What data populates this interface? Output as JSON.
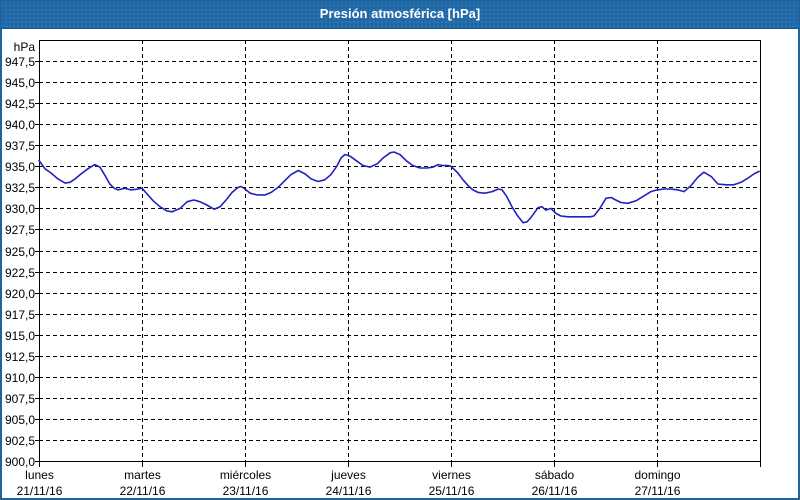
{
  "window": {
    "title": "Presión atmosférica [hPa]"
  },
  "colors": {
    "titlebar_bg": "#2069A8",
    "titlebar_text": "#FFFFFF",
    "outer_border": "#1E649E",
    "plot_border": "#000000",
    "grid": "#000000",
    "line": "#2222BB",
    "label_text": "#000000",
    "background": "#FFFFFF"
  },
  "chart_data": {
    "type": "line",
    "title": "Presión atmosférica [hPa]",
    "unit_label": "hPa",
    "ylim": [
      900,
      950
    ],
    "ytick_step": 2.5,
    "ytick_labels_top_to_bottom": [
      "947,5",
      "945,0",
      "942,5",
      "940,0",
      "937,5",
      "935,0",
      "932,5",
      "930,0",
      "927,5",
      "925,0",
      "922,5",
      "920,0",
      "917,5",
      "915,0",
      "912,5",
      "910,0",
      "907,5",
      "905,0",
      "902,5",
      "900,0"
    ],
    "grid": "dashed",
    "legend": "none",
    "x_total_hours": 168,
    "x_days": [
      {
        "name": "lunes",
        "date": "21/11/16"
      },
      {
        "name": "martes",
        "date": "22/11/16"
      },
      {
        "name": "miércoles",
        "date": "23/11/16"
      },
      {
        "name": "jueves",
        "date": "24/11/16"
      },
      {
        "name": "viernes",
        "date": "25/11/16"
      },
      {
        "name": "sábado",
        "date": "26/11/16"
      },
      {
        "name": "domingo",
        "date": "27/11/16"
      }
    ],
    "series": [
      {
        "name": "Presión atmosférica",
        "color": "#2222BB",
        "points": [
          [
            0.0,
            935.7
          ],
          [
            1.4,
            934.7
          ],
          [
            2.8,
            934.2
          ],
          [
            4.4,
            933.5
          ],
          [
            6.1,
            933.0
          ],
          [
            7.2,
            933.1
          ],
          [
            8.4,
            933.5
          ],
          [
            9.8,
            934.1
          ],
          [
            11.4,
            934.7
          ],
          [
            13.0,
            935.2
          ],
          [
            14.2,
            934.9
          ],
          [
            15.4,
            933.9
          ],
          [
            16.5,
            932.9
          ],
          [
            17.5,
            932.4
          ],
          [
            18.4,
            932.2
          ],
          [
            20.0,
            932.4
          ],
          [
            21.4,
            932.2
          ],
          [
            23.1,
            932.3
          ],
          [
            24.0,
            932.4
          ],
          [
            25.2,
            931.7
          ],
          [
            26.6,
            930.9
          ],
          [
            28.2,
            930.2
          ],
          [
            29.8,
            929.7
          ],
          [
            31.0,
            929.6
          ],
          [
            32.9,
            930.0
          ],
          [
            34.5,
            930.8
          ],
          [
            36.1,
            931.0
          ],
          [
            37.5,
            930.8
          ],
          [
            39.1,
            930.4
          ],
          [
            40.8,
            929.9
          ],
          [
            42.2,
            930.2
          ],
          [
            43.6,
            931.0
          ],
          [
            45.0,
            931.9
          ],
          [
            46.4,
            932.5
          ],
          [
            47.1,
            932.6
          ],
          [
            48.0,
            932.3
          ],
          [
            49.2,
            931.8
          ],
          [
            50.8,
            931.6
          ],
          [
            52.7,
            931.6
          ],
          [
            54.1,
            931.9
          ],
          [
            55.7,
            932.5
          ],
          [
            57.3,
            933.3
          ],
          [
            58.7,
            934.0
          ],
          [
            60.4,
            934.5
          ],
          [
            62.0,
            934.1
          ],
          [
            63.4,
            933.5
          ],
          [
            65.0,
            933.2
          ],
          [
            66.6,
            933.4
          ],
          [
            68.0,
            934.0
          ],
          [
            69.4,
            935.0
          ],
          [
            70.4,
            936.0
          ],
          [
            71.3,
            936.4
          ],
          [
            72.5,
            936.2
          ],
          [
            74.1,
            935.6
          ],
          [
            75.5,
            935.1
          ],
          [
            77.1,
            934.9
          ],
          [
            78.8,
            935.3
          ],
          [
            80.2,
            936.0
          ],
          [
            81.8,
            936.6
          ],
          [
            82.7,
            936.7
          ],
          [
            84.1,
            936.4
          ],
          [
            85.7,
            935.6
          ],
          [
            87.1,
            935.1
          ],
          [
            88.8,
            934.8
          ],
          [
            90.4,
            934.8
          ],
          [
            91.8,
            934.9
          ],
          [
            93.0,
            935.2
          ],
          [
            94.1,
            935.1
          ],
          [
            95.3,
            935.1
          ],
          [
            96.0,
            935.0
          ],
          [
            97.6,
            934.2
          ],
          [
            98.8,
            933.4
          ],
          [
            100.0,
            932.7
          ],
          [
            101.1,
            932.2
          ],
          [
            102.3,
            931.9
          ],
          [
            103.9,
            931.8
          ],
          [
            105.6,
            932.0
          ],
          [
            107.0,
            932.3
          ],
          [
            107.9,
            932.2
          ],
          [
            109.0,
            931.4
          ],
          [
            110.2,
            930.2
          ],
          [
            111.4,
            929.2
          ],
          [
            112.8,
            928.3
          ],
          [
            113.7,
            928.4
          ],
          [
            114.6,
            928.9
          ],
          [
            116.3,
            930.1
          ],
          [
            117.2,
            930.2
          ],
          [
            118.1,
            929.8
          ],
          [
            119.3,
            930.0
          ],
          [
            120.5,
            929.4
          ],
          [
            121.6,
            929.1
          ],
          [
            123.3,
            929.0
          ],
          [
            124.9,
            929.0
          ],
          [
            126.5,
            929.0
          ],
          [
            128.4,
            929.0
          ],
          [
            129.3,
            929.1
          ],
          [
            130.7,
            930.0
          ],
          [
            132.1,
            931.2
          ],
          [
            133.3,
            931.3
          ],
          [
            134.4,
            931.0
          ],
          [
            135.6,
            930.7
          ],
          [
            137.2,
            930.6
          ],
          [
            139.1,
            930.9
          ],
          [
            141.0,
            931.5
          ],
          [
            142.6,
            932.0
          ],
          [
            144.0,
            932.2
          ],
          [
            145.6,
            932.3
          ],
          [
            147.2,
            932.3
          ],
          [
            148.9,
            932.2
          ],
          [
            150.3,
            932.0
          ],
          [
            151.9,
            932.7
          ],
          [
            153.5,
            933.7
          ],
          [
            154.9,
            934.3
          ],
          [
            156.6,
            933.8
          ],
          [
            158.2,
            932.9
          ],
          [
            160.1,
            932.8
          ],
          [
            161.9,
            932.8
          ],
          [
            163.6,
            933.1
          ],
          [
            165.2,
            933.6
          ],
          [
            166.6,
            934.1
          ],
          [
            167.8,
            934.4
          ]
        ]
      }
    ]
  }
}
